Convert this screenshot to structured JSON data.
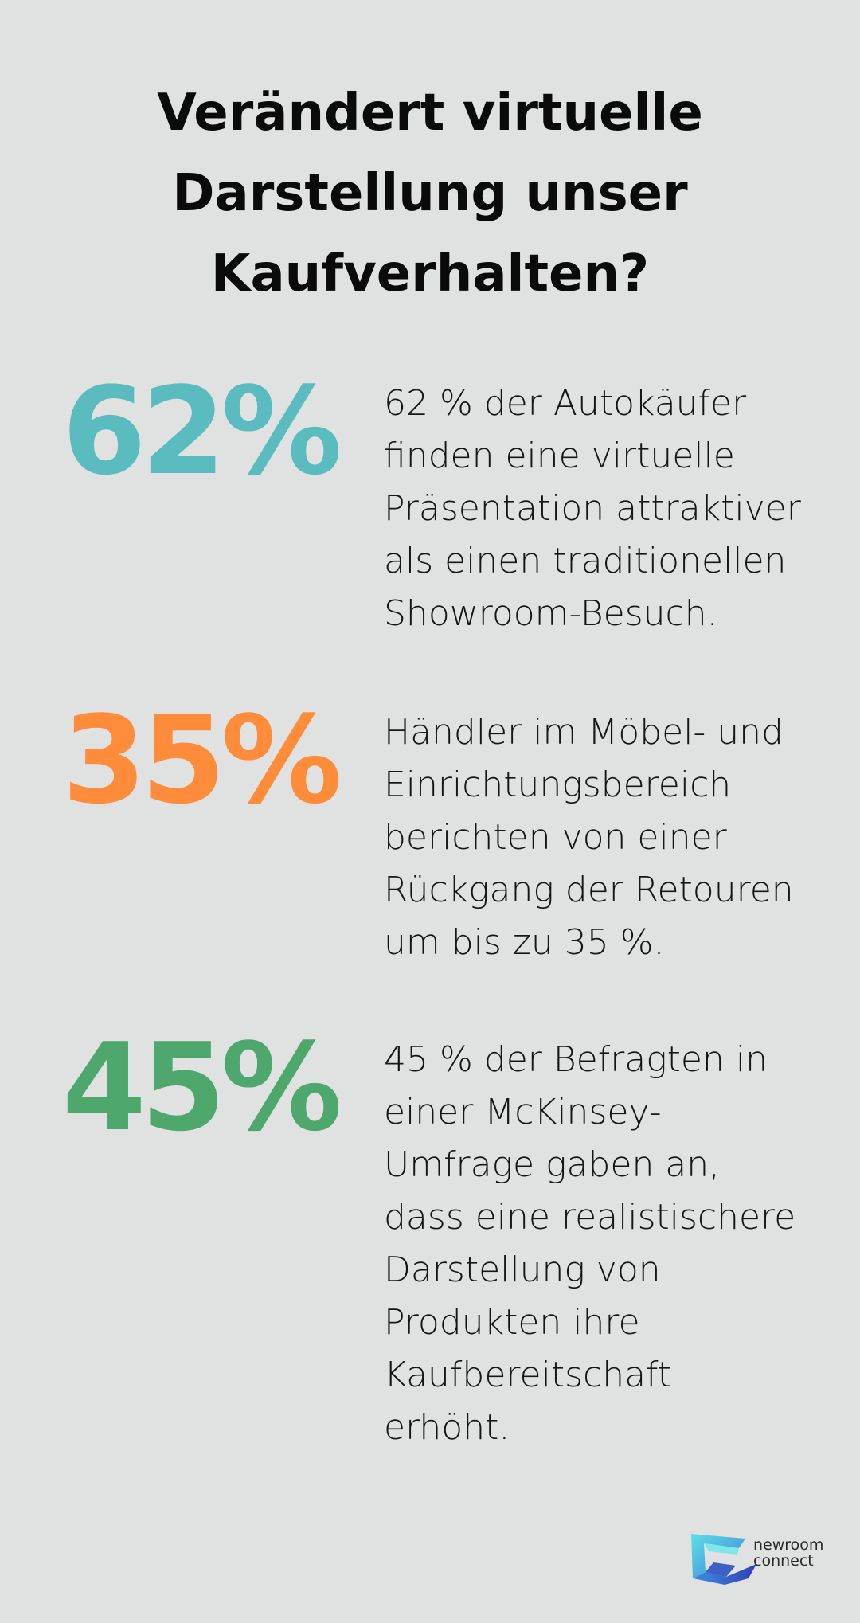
{
  "title": "Verändert virtuelle Darstellung unser Kaufverhalten?",
  "stats": [
    {
      "value": "62%",
      "color": "#5bbcbf",
      "description": "62 % der Autokäufer finden eine virtuelle Präsentation attraktiver als einen traditionellen Showroom-Besuch."
    },
    {
      "value": "35%",
      "color": "#ff8c3a",
      "description": "Händler im Möbel- und Einrichtungsbereich berichten von einer Rückgang der Retouren um bis zu 35 %."
    },
    {
      "value": "45%",
      "color": "#4ea86e",
      "description": "45 % der Befragten in einer McKinsey-Umfrage gaben an, dass eine realistischere Darstellung von Produkten ihre Kaufbereitschaft erhöht."
    }
  ],
  "logo": {
    "line1": "newroom",
    "line2": "connect",
    "icon": "newroom-connect-logo-icon"
  }
}
